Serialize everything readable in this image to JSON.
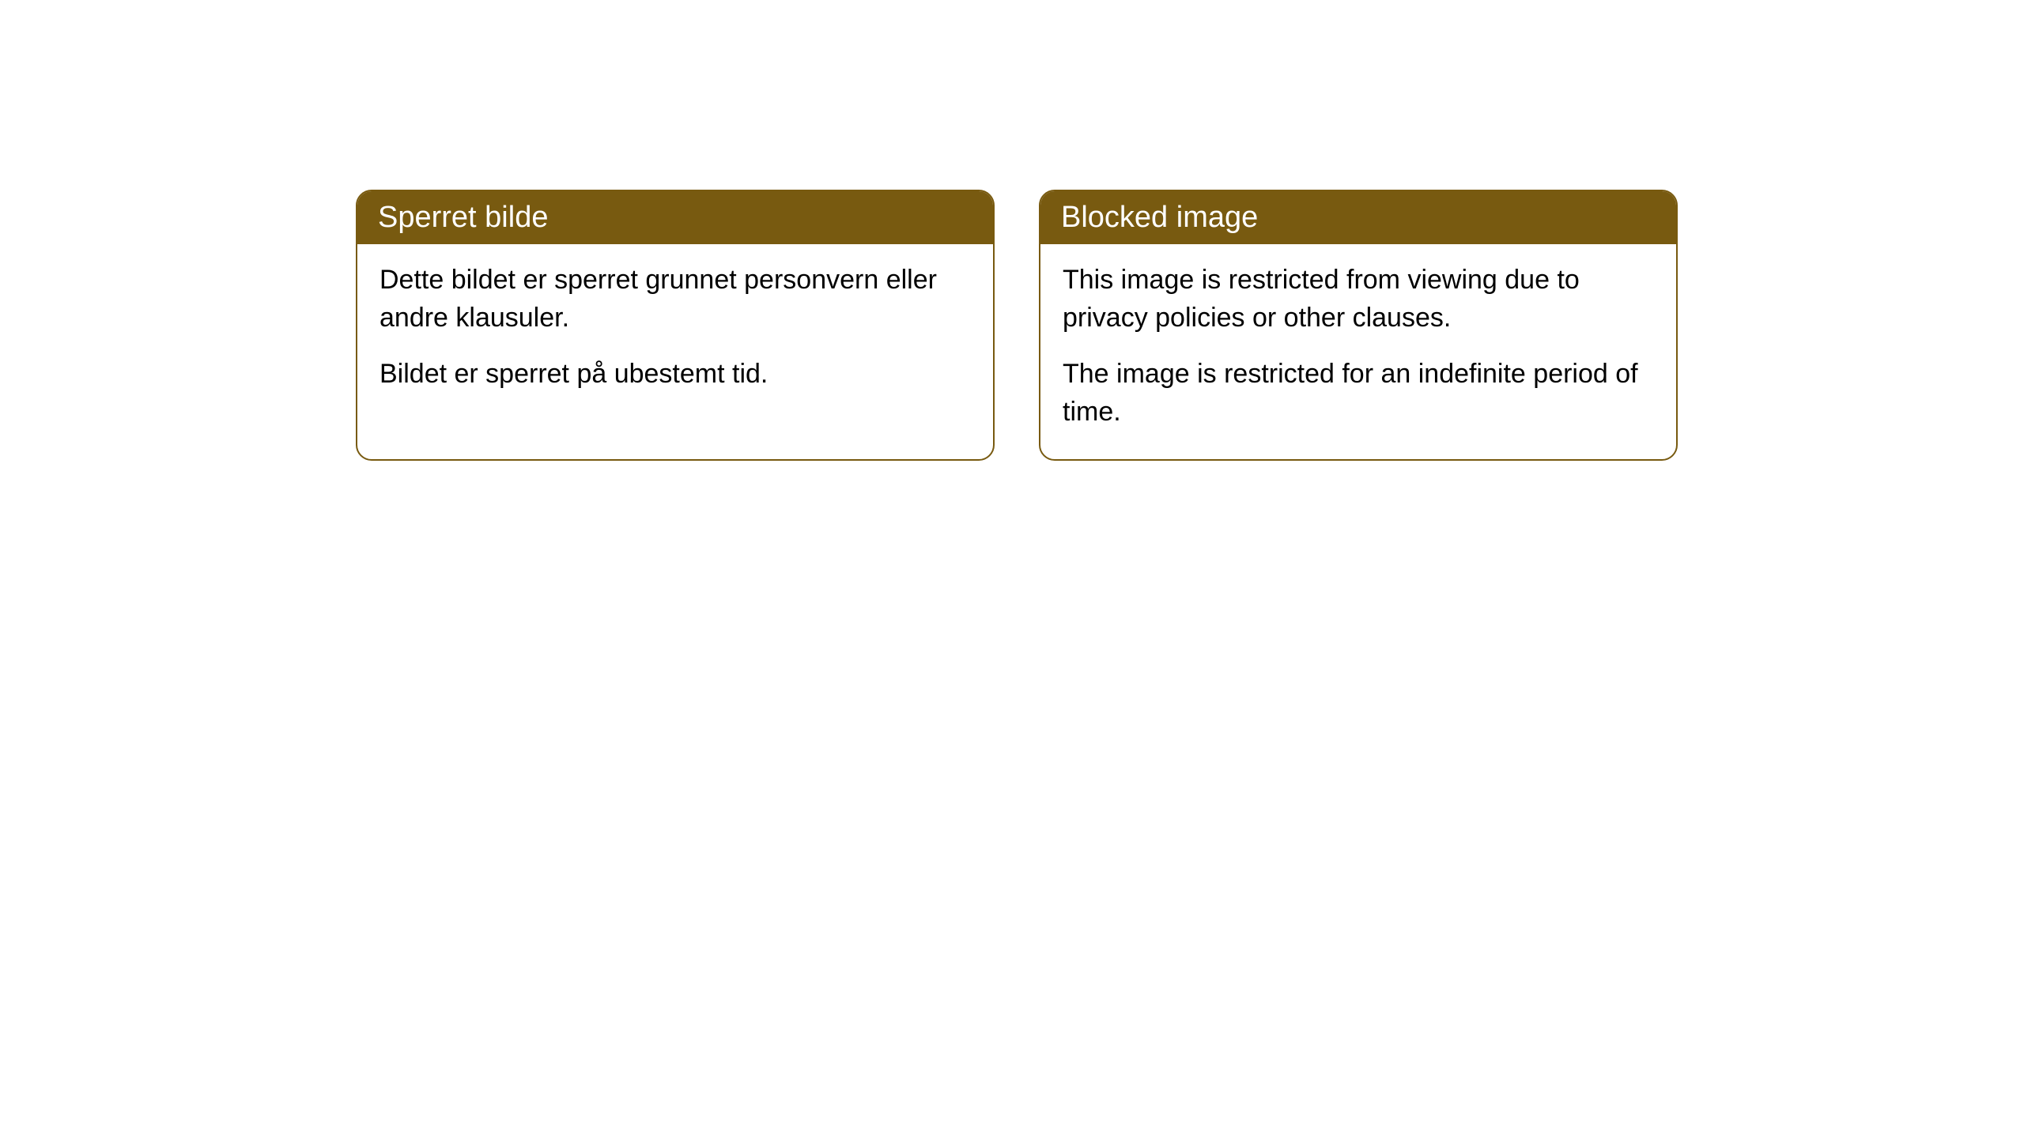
{
  "cards": [
    {
      "title": "Sperret bilde",
      "paragraph1": "Dette bildet er sperret grunnet personvern eller andre klausuler.",
      "paragraph2": "Bildet er sperret på ubestemt tid."
    },
    {
      "title": "Blocked image",
      "paragraph1": "This image is restricted from viewing due to privacy policies or other clauses.",
      "paragraph2": "The image is restricted for an indefinite period of time."
    }
  ],
  "styling": {
    "header_background_color": "#785a10",
    "header_text_color": "#ffffff",
    "border_color": "#785a10",
    "body_background_color": "#ffffff",
    "body_text_color": "#000000",
    "border_radius": 20,
    "header_fontsize": 38,
    "body_fontsize": 34
  }
}
